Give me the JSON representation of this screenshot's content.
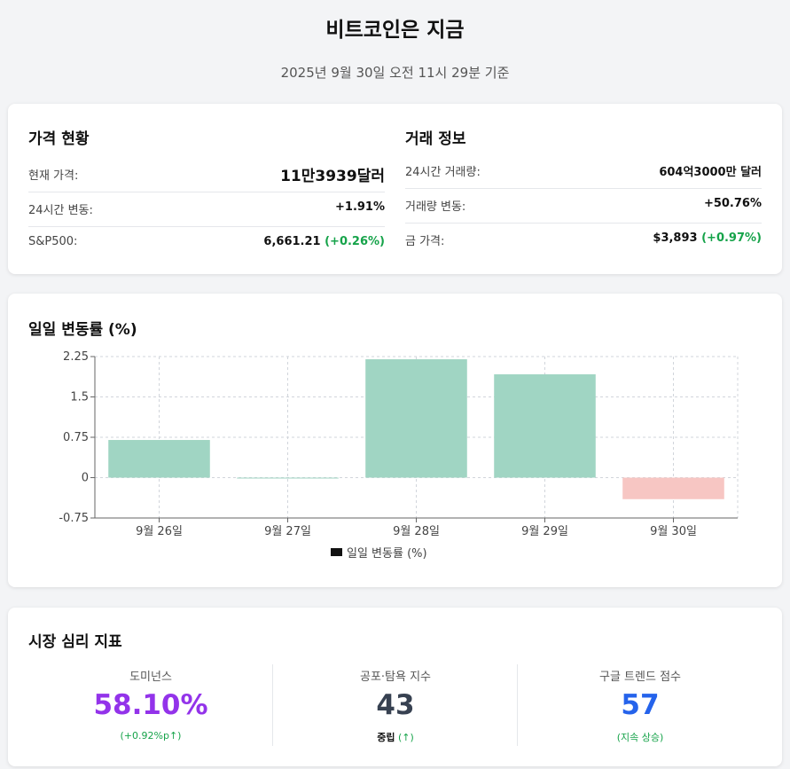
{
  "header": {
    "title": "비트코인은 지금",
    "subtitle": "2025년 9월 30일 오전 11시 29분 기준"
  },
  "price": {
    "title": "가격 현황",
    "current_label": "현재 가격:",
    "current_value": "11만3939달러",
    "change_label": "24시간 변동:",
    "change_value": "+1.91%",
    "sp500_label": "S&P500:",
    "sp500_value": "6,661.21",
    "sp500_change": "(+0.26%)"
  },
  "trade": {
    "title": "거래 정보",
    "volume_label": "24시간 거래량:",
    "volume_value": "604억3000만 달러",
    "volume_change_label": "거래량 변동:",
    "volume_change_value": "+50.76%",
    "gold_label": "금 가격:",
    "gold_value": "$3,893",
    "gold_change": "(+0.97%)"
  },
  "chart_data": {
    "type": "bar",
    "title": "일일 변동률 (%)",
    "categories": [
      "9월 26일",
      "9월 27일",
      "9월 28일",
      "9월 29일",
      "9월 30일"
    ],
    "series": [
      {
        "name": "일일 변동률 (%)",
        "values": [
          0.7,
          0.0,
          2.2,
          1.92,
          -0.4
        ]
      }
    ],
    "ylim": [
      -0.75,
      2.25
    ],
    "yticks": [
      2.25,
      1.5,
      0.75,
      0,
      -0.75
    ],
    "ytick_labels": [
      "2.25",
      "1.5",
      "0.75",
      "0",
      "-0.75"
    ],
    "grid": true,
    "legend": "bottom",
    "colors": {
      "positive": "#a0d5c3",
      "negative": "#f7c6c3"
    }
  },
  "sentiment": {
    "title": "시장 심리 지표",
    "dominance": {
      "label": "도미넌스",
      "value": "58.10%",
      "sub": "(+0.92%p↑)",
      "color": "#9333ea"
    },
    "fear_greed": {
      "label": "공포·탐욕 지수",
      "value": "43",
      "sub_status": "중립",
      "sub_arrow": "(↑)",
      "color": "#374151"
    },
    "google": {
      "label": "구글 트렌드 점수",
      "value": "57",
      "sub": "(지속 상승)",
      "color": "#2563eb"
    }
  }
}
